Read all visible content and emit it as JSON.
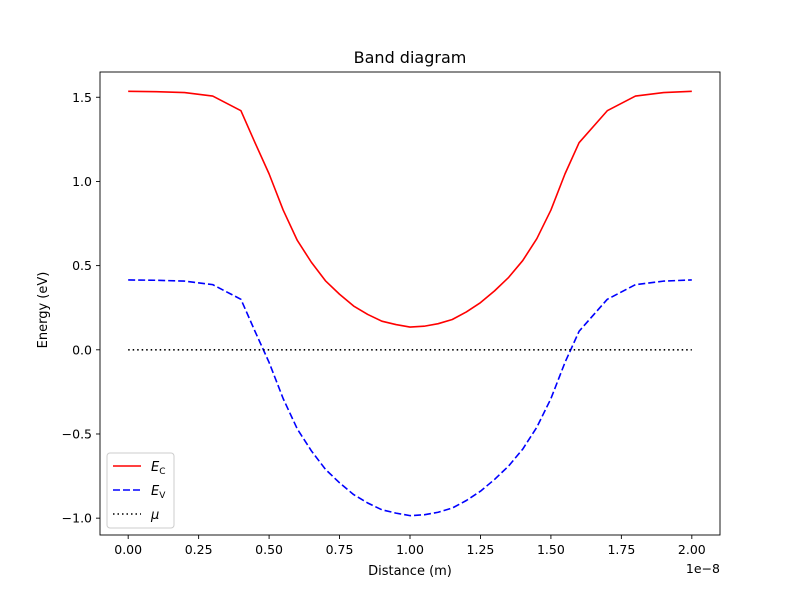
{
  "chart_data": {
    "type": "line",
    "title": "Band diagram",
    "xlabel": "Distance (m)",
    "ylabel": "Energy (eV)",
    "x_offset_text": "1e−8",
    "xlim": [
      -1e-09,
      2.1e-08
    ],
    "ylim": [
      -1.1,
      1.65
    ],
    "x_ticks": [
      0,
      2.5e-09,
      5e-09,
      7.5e-09,
      1e-08,
      1.25e-08,
      1.5e-08,
      1.75e-08,
      2e-08
    ],
    "x_tick_labels": [
      "0.00",
      "0.25",
      "0.50",
      "0.75",
      "1.00",
      "1.25",
      "1.50",
      "1.75",
      "2.00"
    ],
    "y_ticks": [
      1.5,
      1.0,
      0.5,
      0.0,
      -0.5,
      -1.0
    ],
    "y_tick_labels": [
      "1.5",
      "1.0",
      "0.5",
      "0.0",
      "−0.5",
      "−1.0"
    ],
    "legend": {
      "position": "lower-left",
      "entries": [
        {
          "main": "E",
          "sub": "C",
          "color": "#ff0000",
          "style": "solid"
        },
        {
          "main": "E",
          "sub": "V",
          "color": "#0000ff",
          "style": "dashed"
        },
        {
          "main": "μ",
          "sub": "",
          "color": "#000000",
          "style": "dotted"
        }
      ]
    },
    "x": [
      0,
      1e-09,
      2e-09,
      3e-09,
      4e-09,
      4.5e-09,
      5e-09,
      5.5e-09,
      6e-09,
      6.5e-09,
      7e-09,
      7.5e-09,
      8e-09,
      8.5e-09,
      9e-09,
      9.5e-09,
      1e-08,
      1.05e-08,
      1.1e-08,
      1.15e-08,
      1.2e-08,
      1.25e-08,
      1.3e-08,
      1.35e-08,
      1.4e-08,
      1.45e-08,
      1.5e-08,
      1.55e-08,
      1.6e-08,
      1.7e-08,
      1.8e-08,
      1.9e-08,
      2e-08
    ],
    "series": [
      {
        "name": "E_C",
        "color": "#ff0000",
        "style": "solid",
        "values": [
          1.535,
          1.533,
          1.528,
          1.507,
          1.42,
          1.23,
          1.045,
          0.83,
          0.65,
          0.52,
          0.41,
          0.33,
          0.26,
          0.21,
          0.17,
          0.15,
          0.135,
          0.14,
          0.155,
          0.18,
          0.225,
          0.28,
          0.35,
          0.43,
          0.53,
          0.66,
          0.83,
          1.045,
          1.23,
          1.42,
          1.507,
          1.528,
          1.535
        ]
      },
      {
        "name": "E_V",
        "color": "#0000ff",
        "style": "dashed",
        "values": [
          0.415,
          0.413,
          0.408,
          0.387,
          0.3,
          0.11,
          -0.075,
          -0.29,
          -0.47,
          -0.6,
          -0.71,
          -0.79,
          -0.86,
          -0.91,
          -0.95,
          -0.97,
          -0.985,
          -0.98,
          -0.965,
          -0.94,
          -0.895,
          -0.84,
          -0.77,
          -0.69,
          -0.59,
          -0.46,
          -0.29,
          -0.075,
          0.11,
          0.3,
          0.387,
          0.408,
          0.415
        ]
      },
      {
        "name": "μ",
        "color": "#000000",
        "style": "dotted",
        "values": [
          0,
          0,
          0,
          0,
          0,
          0,
          0,
          0,
          0,
          0,
          0,
          0,
          0,
          0,
          0,
          0,
          0,
          0,
          0,
          0,
          0,
          0,
          0,
          0,
          0,
          0,
          0,
          0,
          0,
          0,
          0,
          0,
          0
        ]
      }
    ],
    "grid": false
  }
}
